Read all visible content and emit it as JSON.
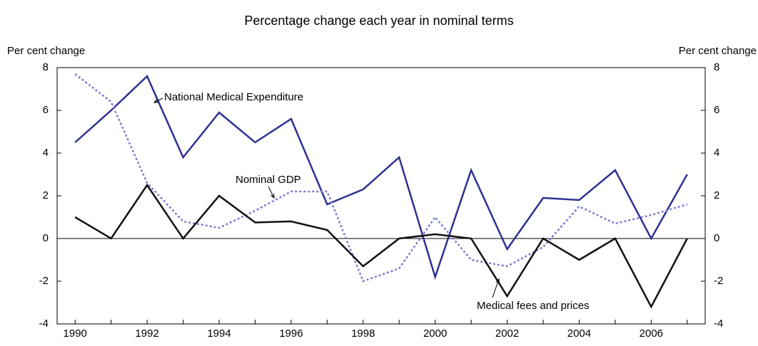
{
  "chart_data": {
    "type": "line",
    "title": "Percentage change each year in nominal terms",
    "y_label": "Per cent change",
    "y2_label": "Per cent change",
    "x": [
      1990,
      1991,
      1992,
      1993,
      1994,
      1995,
      1996,
      1997,
      1998,
      1999,
      2000,
      2001,
      2002,
      2003,
      2004,
      2005,
      2006,
      2007
    ],
    "xlim": [
      1989.5,
      2007.5
    ],
    "xticks": [
      1990,
      1992,
      1994,
      1996,
      1998,
      2000,
      2002,
      2004,
      2006
    ],
    "ylim": [
      -4,
      8
    ],
    "yticks": [
      -4,
      -2,
      0,
      2,
      4,
      6,
      8
    ],
    "y2lim": [
      -4,
      8
    ],
    "y2ticks": [
      -4,
      -2,
      0,
      2,
      4,
      6,
      8
    ],
    "grid": false,
    "series": [
      {
        "name": "National Medical Expenditure",
        "color": "#2e3192",
        "dash": false,
        "values": [
          4.5,
          6.0,
          7.6,
          3.8,
          5.9,
          4.5,
          5.6,
          1.6,
          2.3,
          3.8,
          -1.8,
          3.2,
          -0.5,
          1.9,
          1.8,
          3.2,
          0.0,
          3.0
        ]
      },
      {
        "name": "Nominal GDP",
        "color": "#7b7bd4",
        "dash": true,
        "values": [
          7.7,
          6.4,
          2.6,
          0.8,
          0.5,
          1.3,
          2.2,
          2.2,
          -2.0,
          -1.4,
          1.0,
          -1.0,
          -1.3,
          -0.4,
          1.5,
          0.7,
          1.1,
          1.6
        ]
      },
      {
        "name": "Medical fees and prices",
        "color": "#111111",
        "dash": false,
        "values": [
          1.0,
          0.0,
          2.5,
          0.0,
          2.0,
          0.75,
          0.8,
          0.4,
          -1.3,
          0.0,
          0.2,
          0.0,
          -2.7,
          0.0,
          -1.0,
          0.0,
          -3.2,
          0.0
        ]
      }
    ]
  }
}
